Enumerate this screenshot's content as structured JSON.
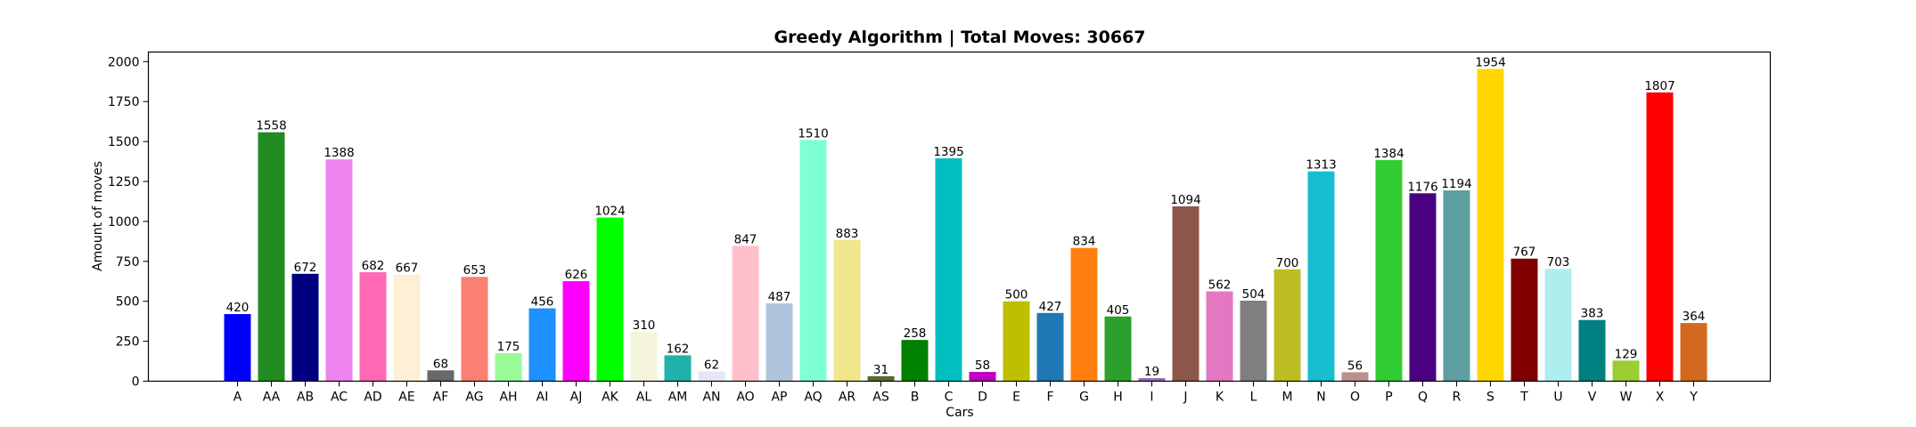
{
  "chart_data": {
    "type": "bar",
    "title": "Greedy Algorithm | Total Moves: 30667",
    "xlabel": "Cars",
    "ylabel": "Amount of moves",
    "ylim": [
      0,
      2060
    ],
    "yticks": [
      0,
      250,
      500,
      750,
      1000,
      1250,
      1500,
      1750,
      2000
    ],
    "grid": false,
    "categories": [
      "A",
      "AA",
      "AB",
      "AC",
      "AD",
      "AE",
      "AF",
      "AG",
      "AH",
      "AI",
      "AJ",
      "AK",
      "AL",
      "AM",
      "AN",
      "AO",
      "AP",
      "AQ",
      "AR",
      "AS",
      "B",
      "C",
      "D",
      "E",
      "F",
      "G",
      "H",
      "I",
      "J",
      "K",
      "L",
      "M",
      "N",
      "O",
      "P",
      "Q",
      "R",
      "S",
      "T",
      "U",
      "V",
      "W",
      "X",
      "Y"
    ],
    "values": [
      420,
      1558,
      672,
      1388,
      682,
      667,
      68,
      653,
      175,
      456,
      626,
      1024,
      310,
      162,
      62,
      847,
      487,
      1510,
      883,
      31,
      258,
      1395,
      58,
      500,
      427,
      834,
      405,
      19,
      1094,
      562,
      504,
      700,
      1313,
      56,
      1384,
      1176,
      1194,
      1954,
      767,
      703,
      383,
      129,
      1807,
      364
    ],
    "colors": [
      "#0000ff",
      "#228b22",
      "#000080",
      "#ee82ee",
      "#ff69b4",
      "#ffefd5",
      "#696969",
      "#fa8072",
      "#98fb98",
      "#1e90ff",
      "#ff00ff",
      "#00ff00",
      "#f5f5dc",
      "#20b2aa",
      "#e6e6fa",
      "#ffc0cb",
      "#b0c4de",
      "#7fffd4",
      "#f0e68c",
      "#556b2f",
      "#008000",
      "#00bfbf",
      "#bf00bf",
      "#bfbf00",
      "#1f77b4",
      "#ff7f0e",
      "#2ca02c",
      "#9467bd",
      "#8c564b",
      "#e377c2",
      "#7f7f7f",
      "#bcbd22",
      "#17becf",
      "#bc8f8f",
      "#32cd32",
      "#4b0082",
      "#5f9ea0",
      "#ffd700",
      "#800000",
      "#afeeee",
      "#008080",
      "#9acd32",
      "#ff0000",
      "#d2691e"
    ]
  }
}
